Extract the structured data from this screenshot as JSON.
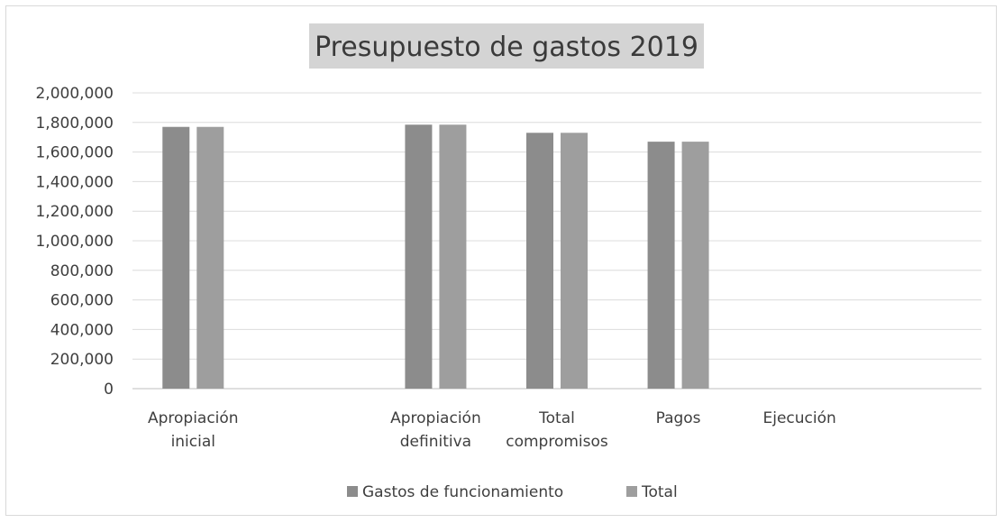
{
  "chart_data": {
    "type": "bar",
    "title": "Presupuesto de gastos 2019",
    "categories": [
      [
        "Apropiación",
        "inicial"
      ],
      [
        "",
        ""
      ],
      [
        "Apropiación",
        "definitiva"
      ],
      [
        "Total",
        "compromisos"
      ],
      [
        "Pagos",
        ""
      ],
      [
        "Ejecución",
        ""
      ],
      [
        "",
        ""
      ]
    ],
    "series": [
      {
        "name": "Gastos de funcionamiento",
        "color": "#8c8c8c",
        "values": [
          1770000,
          null,
          1785000,
          1730000,
          1670000,
          null,
          null
        ]
      },
      {
        "name": "Total",
        "color": "#9e9e9e",
        "values": [
          1770000,
          null,
          1785000,
          1730000,
          1670000,
          null,
          null
        ]
      }
    ],
    "ylim": [
      0,
      2000000
    ],
    "yticks": [
      "0",
      "200,000",
      "400,000",
      "600,000",
      "800,000",
      "1,000,000",
      "1,200,000",
      "1,400,000",
      "1,600,000",
      "1,800,000",
      "2,000,000"
    ],
    "grid": true,
    "legend_position": "bottom"
  }
}
